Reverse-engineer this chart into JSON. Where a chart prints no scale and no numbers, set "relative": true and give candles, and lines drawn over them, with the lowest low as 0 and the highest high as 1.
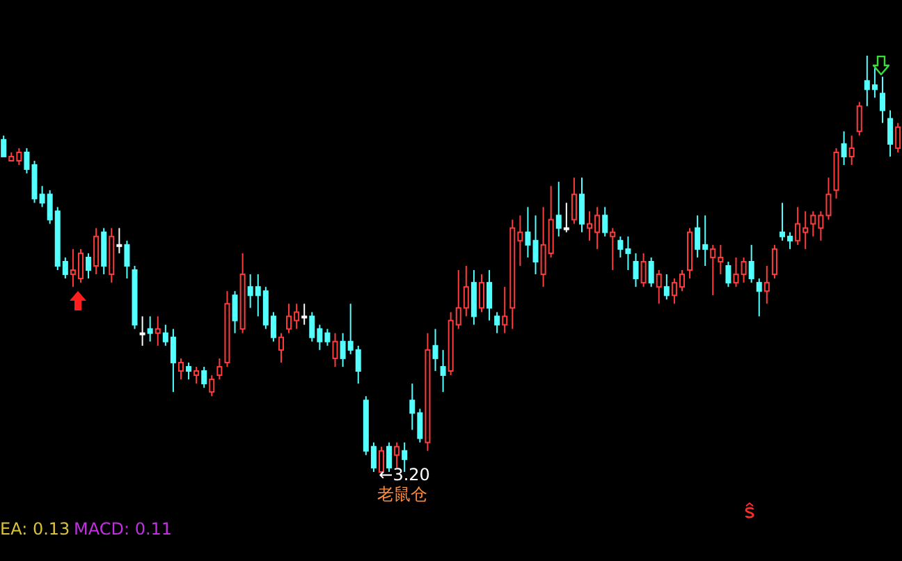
{
  "chart_data": {
    "type": "candlestick",
    "relative": true,
    "categories": [
      null,
      null,
      null,
      null,
      null,
      null,
      null,
      null,
      null,
      null,
      null,
      null,
      null,
      null,
      null,
      null,
      null,
      null,
      null,
      null,
      null,
      null,
      null,
      null,
      null,
      null,
      null,
      null,
      null,
      null,
      null,
      null,
      null,
      null,
      null,
      null,
      null,
      null,
      null,
      null,
      null,
      null,
      null,
      null,
      null,
      null,
      null,
      null,
      null,
      null,
      null,
      null,
      null,
      null,
      null,
      null,
      null,
      null,
      null,
      null,
      null,
      null,
      null,
      null,
      null,
      null,
      null,
      null,
      null,
      null,
      null,
      null,
      null,
      null,
      null,
      null,
      null,
      null,
      null,
      null,
      null,
      null,
      null,
      null,
      null,
      null,
      null,
      null,
      null,
      null,
      null,
      null,
      null,
      null,
      null,
      null,
      null,
      null,
      null,
      null,
      null,
      null,
      null,
      null,
      null,
      null,
      null,
      null,
      null,
      null,
      null,
      null,
      null,
      null,
      null,
      null,
      null
    ],
    "ohlc": [
      [
        0.8,
        0.81,
        0.76,
        0.76
      ],
      [
        0.75,
        0.77,
        0.75,
        0.76
      ],
      [
        0.75,
        0.78,
        0.74,
        0.77
      ],
      [
        0.77,
        0.78,
        0.72,
        0.73
      ],
      [
        0.74,
        0.75,
        0.65,
        0.66
      ],
      [
        0.67,
        0.69,
        0.64,
        0.65
      ],
      [
        0.67,
        0.68,
        0.6,
        0.61
      ],
      [
        0.63,
        0.64,
        0.49,
        0.5
      ],
      [
        0.51,
        0.52,
        0.47,
        0.48
      ],
      [
        0.48,
        0.54,
        0.45,
        0.49
      ],
      [
        0.47,
        0.54,
        0.46,
        0.53
      ],
      [
        0.52,
        0.53,
        0.47,
        0.49
      ],
      [
        0.5,
        0.59,
        0.48,
        0.57
      ],
      [
        0.58,
        0.59,
        0.48,
        0.5
      ],
      [
        0.48,
        0.59,
        0.46,
        0.57
      ],
      [
        0.55,
        0.59,
        0.53,
        0.55
      ],
      [
        0.55,
        0.56,
        0.47,
        0.5
      ],
      [
        0.49,
        0.5,
        0.35,
        0.36
      ],
      [
        0.34,
        0.38,
        0.31,
        0.34
      ],
      [
        0.35,
        0.38,
        0.32,
        0.34
      ],
      [
        0.34,
        0.38,
        0.31,
        0.35
      ],
      [
        0.34,
        0.36,
        0.31,
        0.32
      ],
      [
        0.33,
        0.35,
        0.2,
        0.27
      ],
      [
        0.25,
        0.28,
        0.23,
        0.27
      ],
      [
        0.26,
        0.27,
        0.23,
        0.25
      ],
      [
        0.24,
        0.26,
        0.22,
        0.25
      ],
      [
        0.25,
        0.26,
        0.21,
        0.22
      ],
      [
        0.2,
        0.24,
        0.19,
        0.23
      ],
      [
        0.24,
        0.28,
        0.23,
        0.26
      ],
      [
        0.27,
        0.44,
        0.26,
        0.41
      ],
      [
        0.43,
        0.44,
        0.34,
        0.37
      ],
      [
        0.35,
        0.53,
        0.34,
        0.48
      ],
      [
        0.45,
        0.48,
        0.4,
        0.43
      ],
      [
        0.45,
        0.48,
        0.38,
        0.43
      ],
      [
        0.44,
        0.45,
        0.35,
        0.36
      ],
      [
        0.38,
        0.39,
        0.32,
        0.33
      ],
      [
        0.3,
        0.34,
        0.27,
        0.33
      ],
      [
        0.35,
        0.41,
        0.34,
        0.38
      ],
      [
        0.37,
        0.41,
        0.35,
        0.39
      ],
      [
        0.38,
        0.41,
        0.36,
        0.38
      ],
      [
        0.38,
        0.39,
        0.32,
        0.33
      ],
      [
        0.35,
        0.36,
        0.3,
        0.32
      ],
      [
        0.34,
        0.35,
        0.31,
        0.32
      ],
      [
        0.28,
        0.34,
        0.26,
        0.32
      ],
      [
        0.32,
        0.34,
        0.26,
        0.28
      ],
      [
        0.32,
        0.41,
        0.29,
        0.3
      ],
      [
        0.3,
        0.31,
        0.22,
        0.25
      ],
      [
        0.18,
        0.19,
        0.05,
        0.06
      ],
      [
        0.07,
        0.08,
        0.01,
        0.02
      ],
      [
        0.01,
        0.07,
        0,
        0.06
      ],
      [
        0.07,
        0.08,
        0.01,
        0.02
      ],
      [
        0.05,
        0.08,
        0.02,
        0.07
      ],
      [
        0.06,
        0.08,
        0.01,
        0.04
      ],
      [
        0.18,
        0.22,
        0.11,
        0.15
      ],
      [
        0.15,
        0.16,
        0.08,
        0.09
      ],
      [
        0.08,
        0.34,
        0.06,
        0.3
      ],
      [
        0.31,
        0.35,
        0.25,
        0.28
      ],
      [
        0.26,
        0.3,
        0.2,
        0.24
      ],
      [
        0.25,
        0.39,
        0.24,
        0.37
      ],
      [
        0.36,
        0.49,
        0.35,
        0.4
      ],
      [
        0.4,
        0.5,
        0.38,
        0.45
      ],
      [
        0.46,
        0.49,
        0.36,
        0.38
      ],
      [
        0.4,
        0.48,
        0.39,
        0.46
      ],
      [
        0.46,
        0.49,
        0.37,
        0.4
      ],
      [
        0.38,
        0.39,
        0.34,
        0.36
      ],
      [
        0.36,
        0.45,
        0.34,
        0.38
      ],
      [
        0.4,
        0.61,
        0.35,
        0.59
      ],
      [
        0.56,
        0.62,
        0.5,
        0.58
      ],
      [
        0.58,
        0.64,
        0.52,
        0.55
      ],
      [
        0.56,
        0.62,
        0.48,
        0.51
      ],
      [
        0.48,
        0.64,
        0.45,
        0.55
      ],
      [
        0.53,
        0.69,
        0.52,
        0.61
      ],
      [
        0.62,
        0.7,
        0.57,
        0.59
      ],
      [
        0.59,
        0.65,
        0.58,
        0.59
      ],
      [
        0.61,
        0.71,
        0.6,
        0.67
      ],
      [
        0.67,
        0.71,
        0.58,
        0.6
      ],
      [
        0.59,
        0.63,
        0.56,
        0.6
      ],
      [
        0.58,
        0.64,
        0.54,
        0.62
      ],
      [
        0.62,
        0.64,
        0.57,
        0.58
      ],
      [
        0.57,
        0.59,
        0.49,
        0.58
      ],
      [
        0.56,
        0.57,
        0.52,
        0.54
      ],
      [
        0.54,
        0.57,
        0.49,
        0.53
      ],
      [
        0.51,
        0.53,
        0.45,
        0.47
      ],
      [
        0.46,
        0.53,
        0.45,
        0.51
      ],
      [
        0.51,
        0.52,
        0.45,
        0.46
      ],
      [
        0.45,
        0.49,
        0.41,
        0.48
      ],
      [
        0.45,
        0.48,
        0.42,
        0.43
      ],
      [
        0.43,
        0.47,
        0.41,
        0.46
      ],
      [
        0.45,
        0.49,
        0.44,
        0.48
      ],
      [
        0.49,
        0.59,
        0.47,
        0.58
      ],
      [
        0.59,
        0.62,
        0.52,
        0.54
      ],
      [
        0.55,
        0.62,
        0.5,
        0.54
      ],
      [
        0.52,
        0.55,
        0.43,
        0.54
      ],
      [
        0.51,
        0.55,
        0.48,
        0.52
      ],
      [
        0.5,
        0.51,
        0.45,
        0.46
      ],
      [
        0.46,
        0.52,
        0.45,
        0.48
      ],
      [
        0.48,
        0.52,
        0.46,
        0.51
      ],
      [
        0.51,
        0.55,
        0.46,
        0.47
      ],
      [
        0.46,
        0.47,
        0.38,
        0.44
      ],
      [
        0.44,
        0.5,
        0.41,
        0.46
      ],
      [
        0.48,
        0.55,
        0.47,
        0.54
      ],
      [
        0.58,
        0.65,
        0.56,
        0.57
      ],
      [
        0.57,
        0.58,
        0.54,
        0.56
      ],
      [
        0.56,
        0.64,
        0.55,
        0.6
      ],
      [
        0.58,
        0.63,
        0.54,
        0.59
      ],
      [
        0.6,
        0.63,
        0.57,
        0.62
      ],
      [
        0.59,
        0.63,
        0.56,
        0.62
      ],
      [
        0.62,
        0.71,
        0.61,
        0.67
      ],
      [
        0.68,
        0.78,
        0.66,
        0.77
      ],
      [
        0.79,
        0.82,
        0.74,
        0.76
      ],
      [
        0.76,
        0.81,
        0.74,
        0.78
      ],
      [
        0.82,
        0.89,
        0.81,
        0.88
      ],
      [
        0.94,
        1,
        0.88,
        0.92
      ],
      [
        0.93,
        0.97,
        0.9,
        0.92
      ],
      [
        0.91,
        0.95,
        0.84,
        0.87
      ],
      [
        0.85,
        0.87,
        0.76,
        0.79
      ],
      [
        0.78,
        0.84,
        0.77,
        0.83
      ]
    ],
    "colors": [
      "#54ffff",
      "#ff3c3c",
      "#ff3c3c",
      "#54ffff",
      "#54ffff",
      "#54ffff",
      "#54ffff",
      "#54ffff",
      "#54ffff",
      "#ff3c3c",
      "#ff3c3c",
      "#54ffff",
      "#ff3c3c",
      "#54ffff",
      "#ff3c3c",
      "#ffffff",
      "#54ffff",
      "#54ffff",
      "#ffffff",
      "#54ffff",
      "#ff3c3c",
      "#54ffff",
      "#54ffff",
      "#ff3c3c",
      "#54ffff",
      "#ff3c3c",
      "#54ffff",
      "#ff3c3c",
      "#ff3c3c",
      "#ff3c3c",
      "#54ffff",
      "#ff3c3c",
      "#54ffff",
      "#54ffff",
      "#54ffff",
      "#54ffff",
      "#ff3c3c",
      "#ff3c3c",
      "#ff3c3c",
      "#ffffff",
      "#54ffff",
      "#54ffff",
      "#54ffff",
      "#ff3c3c",
      "#54ffff",
      "#54ffff",
      "#54ffff",
      "#54ffff",
      "#54ffff",
      "#ff3c3c",
      "#54ffff",
      "#ff3c3c",
      "#54ffff",
      "#54ffff",
      "#54ffff",
      "#ff3c3c",
      "#54ffff",
      "#54ffff",
      "#ff3c3c",
      "#ff3c3c",
      "#ff3c3c",
      "#54ffff",
      "#ff3c3c",
      "#54ffff",
      "#54ffff",
      "#ff3c3c",
      "#ff3c3c",
      "#ff3c3c",
      "#54ffff",
      "#54ffff",
      "#ff3c3c",
      "#ff3c3c",
      "#54ffff",
      "#ffffff",
      "#ff3c3c",
      "#54ffff",
      "#ff3c3c",
      "#ff3c3c",
      "#54ffff",
      "#ff3c3c",
      "#54ffff",
      "#54ffff",
      "#54ffff",
      "#ff3c3c",
      "#54ffff",
      "#ff3c3c",
      "#54ffff",
      "#ff3c3c",
      "#ff3c3c",
      "#ff3c3c",
      "#54ffff",
      "#54ffff",
      "#ff3c3c",
      "#ff3c3c",
      "#54ffff",
      "#ff3c3c",
      "#ff3c3c",
      "#54ffff",
      "#54ffff",
      "#ff3c3c",
      "#ff3c3c",
      "#54ffff",
      "#54ffff",
      "#ff3c3c",
      "#ff3c3c",
      "#ff3c3c",
      "#ff3c3c",
      "#ff3c3c",
      "#ff3c3c",
      "#54ffff",
      "#ff3c3c",
      "#ff3c3c",
      "#54ffff",
      "#54ffff",
      "#54ffff",
      "#54ffff",
      "#ff3c3c"
    ],
    "annotations": [
      "←3.20",
      "老鼠仓",
      "EA: 0.13",
      "MACD: 0.11"
    ]
  }
}
